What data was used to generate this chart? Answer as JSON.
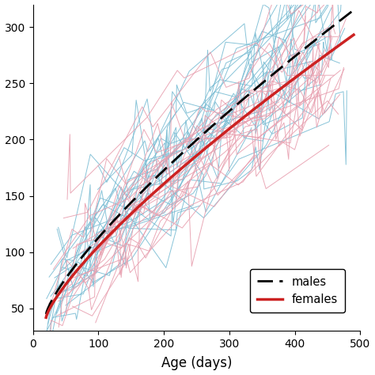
{
  "xlim": [
    0,
    500
  ],
  "ylim": [
    30,
    320
  ],
  "xticks": [
    0,
    100,
    200,
    300,
    400,
    500
  ],
  "yticks": [
    50,
    100,
    150,
    200,
    250,
    300
  ],
  "xlabel": "Age (days)",
  "ylabel": "",
  "male_color": "#7bbdd4",
  "female_color": "#e8a0b0",
  "male_curve_color": "black",
  "female_curve_color": "#cc2222",
  "background_color": "#ffffff",
  "n_male_sims": 25,
  "n_female_sims": 25,
  "male_start": 45,
  "male_end": 315,
  "female_start": 42,
  "female_end": 293,
  "seed": 7
}
